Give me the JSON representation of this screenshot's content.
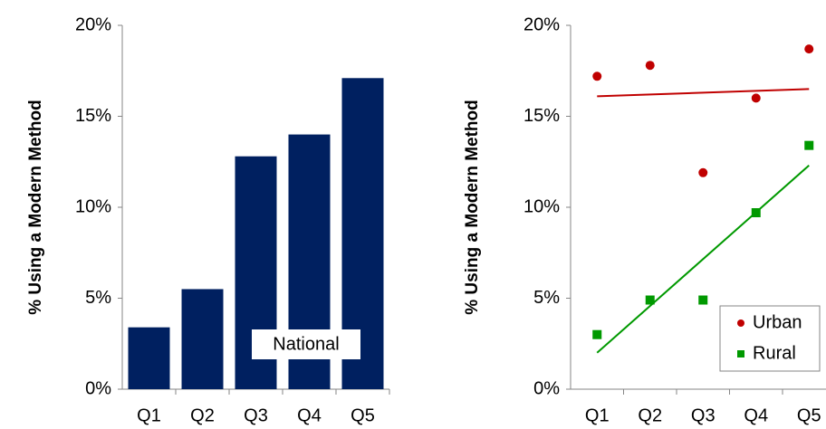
{
  "chart_data": [
    {
      "type": "bar",
      "y_label": "% Using a Modern Method",
      "categories": [
        "Q1",
        "Q2",
        "Q3",
        "Q4",
        "Q5"
      ],
      "values": [
        3.4,
        5.5,
        12.8,
        14.0,
        17.1
      ],
      "color": "#002060",
      "annotation": "National",
      "ylim": [
        0,
        20
      ],
      "yticks": [
        {
          "value": 0,
          "label": "0%"
        },
        {
          "value": 5,
          "label": "5%"
        },
        {
          "value": 10,
          "label": "10%"
        },
        {
          "value": 15,
          "label": "15%"
        },
        {
          "value": 20,
          "label": "20%"
        }
      ]
    },
    {
      "type": "scatter",
      "y_label": "% Using a Modern Method",
      "categories": [
        "Q1",
        "Q2",
        "Q3",
        "Q4",
        "Q5"
      ],
      "series": [
        {
          "name": "Urban",
          "color": "#c00000",
          "marker": "circle",
          "values": [
            17.2,
            17.8,
            11.9,
            16.0,
            18.7
          ],
          "trendline": [
            16.1,
            16.5
          ]
        },
        {
          "name": "Rural",
          "color": "#009900",
          "marker": "square",
          "values": [
            3.0,
            4.9,
            4.9,
            9.7,
            13.4
          ],
          "trendline": [
            2.0,
            12.3
          ]
        }
      ],
      "legend": "lower right",
      "ylim": [
        0,
        20
      ],
      "yticks": [
        {
          "value": 0,
          "label": "0%"
        },
        {
          "value": 5,
          "label": "5%"
        },
        {
          "value": 10,
          "label": "10%"
        },
        {
          "value": 15,
          "label": "15%"
        },
        {
          "value": 20,
          "label": "20%"
        }
      ]
    }
  ]
}
